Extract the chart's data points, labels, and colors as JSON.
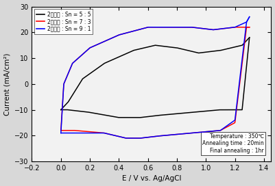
{
  "title": "",
  "xlabel": "E / V vs. Ag/AgCl",
  "ylabel": "Current (mA/cm²)",
  "xlim": [
    -0.2,
    1.45
  ],
  "ylim": [
    -30,
    30
  ],
  "xticks": [
    -0.2,
    0.0,
    0.2,
    0.4,
    0.6,
    0.8,
    1.0,
    1.2,
    1.4
  ],
  "yticks": [
    -30,
    -20,
    -10,
    0,
    10,
    20,
    30
  ],
  "legend": [
    {
      "label": "2성분계 : Sn = 5 : 5",
      "color": "black"
    },
    {
      "label": "2성분계 : Sn = 7 : 3",
      "color": "red"
    },
    {
      "label": "2성분계 : Sn = 9 : 1",
      "color": "blue"
    }
  ],
  "annotation": "Temperature : 350℃\nAnnealing time : 20min\nFinal annealing : 1hr",
  "fig_facecolor": "#d8d8d8",
  "ax_facecolor": "#f2f2f2"
}
